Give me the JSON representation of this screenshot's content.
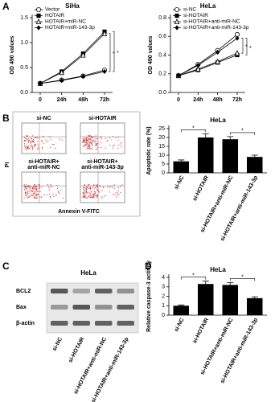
{
  "panel_labels": [
    "A",
    "B",
    "C",
    "D"
  ],
  "chart_data": [
    {
      "type": "line",
      "title": "SiHa",
      "y_label": "OD 490 values",
      "categories": [
        "0",
        "24h",
        "48h",
        "72h"
      ],
      "ylim": [
        0,
        1.5
      ],
      "yticks": [
        {
          "value": 0,
          "label": "0.0"
        },
        {
          "value": 0.5,
          "label": "0.5"
        },
        {
          "value": 1,
          "label": "1.0"
        },
        {
          "value": 1.5,
          "label": "1.5"
        }
      ],
      "legend": "upper left",
      "annotations": [
        "*",
        "*"
      ],
      "series": [
        {
          "name": "Vector",
          "color": "#000000",
          "marker": "circle-open",
          "values": [
            0.18,
            0.25,
            0.33,
            0.45
          ]
        },
        {
          "name": "HOTAIR",
          "color": "#000000",
          "marker": "square",
          "values": [
            0.18,
            0.42,
            0.78,
            1.22
          ]
        },
        {
          "name": "HOTAIR+miR-NC",
          "color": "#000000",
          "marker": "triangle-open",
          "values": [
            0.18,
            0.4,
            0.75,
            1.18
          ]
        },
        {
          "name": "HOTAIR+miR-143-3p",
          "color": "#000000",
          "marker": "diamond",
          "values": [
            0.18,
            0.24,
            0.32,
            0.42
          ]
        }
      ]
    },
    {
      "type": "line",
      "title": "HeLa",
      "y_label": "OD 490 values",
      "categories": [
        "0",
        "24h",
        "48h",
        "72h"
      ],
      "ylim": [
        0,
        0.8
      ],
      "yticks": [
        {
          "value": 0,
          "label": "0.0"
        },
        {
          "value": 0.2,
          "label": "0.2"
        },
        {
          "value": 0.4,
          "label": "0.4"
        },
        {
          "value": 0.6,
          "label": "0.6"
        },
        {
          "value": 0.8,
          "label": "0.8"
        }
      ],
      "legend": "upper left",
      "annotations": [
        "*",
        "*"
      ],
      "series": [
        {
          "name": "si-NC",
          "color": "#000000",
          "marker": "circle-open",
          "values": [
            0.18,
            0.3,
            0.45,
            0.62
          ]
        },
        {
          "name": "si-HOTAIR",
          "color": "#000000",
          "marker": "square",
          "values": [
            0.18,
            0.24,
            0.32,
            0.4
          ]
        },
        {
          "name": "si-HOTAIR+anti-miR-NC",
          "color": "#000000",
          "marker": "triangle-open",
          "values": [
            0.18,
            0.25,
            0.33,
            0.42
          ]
        },
        {
          "name": "si-HOTAIR+anti-miR-143-3p",
          "color": "#000000",
          "marker": "diamond",
          "values": [
            0.18,
            0.29,
            0.43,
            0.58
          ]
        }
      ]
    },
    {
      "type": "bar",
      "title": "HeLa",
      "y_label": "Apoptotic rate (%)",
      "color": "#000000",
      "categories": [
        "si-NC",
        "si-HOTAIR",
        "si-HOTAIR+anti-miR-NC",
        "si-HOTAIR+anti-miR-143-3p"
      ],
      "values": [
        6.5,
        20,
        19,
        9
      ],
      "errors": [
        0.8,
        2,
        1.5,
        1
      ],
      "ylim": [
        0,
        25
      ],
      "yticks": [
        0,
        5,
        10,
        15,
        20,
        25
      ],
      "annotations": [
        "*",
        "*"
      ]
    },
    {
      "type": "bar",
      "title": "HeLa",
      "y_label": "Relative caspase-3 activity",
      "color": "#000000",
      "categories": [
        "si-NC",
        "si-HOTAIR",
        "si-HOTAIR+anti-miR-NC",
        "si-HOTAIR+anti-miR-143-3p"
      ],
      "values": [
        1.0,
        3.3,
        3.2,
        1.8
      ],
      "errors": [
        0.08,
        0.3,
        0.25,
        0.15
      ],
      "ylim": [
        0,
        4
      ],
      "yticks": [
        0,
        1,
        2,
        3,
        4
      ],
      "annotations": [
        "*",
        "*"
      ]
    }
  ],
  "flow": {
    "labels": [
      [
        "si-NC"
      ],
      [
        "si-HOTAIR"
      ],
      [
        "si-HOTAIR+",
        "anti-miR-NC"
      ],
      [
        "si-HOTAIR+",
        "anti-miR-143-3p"
      ]
    ],
    "y_label": "PI",
    "x_label": "Annexin V-FITC"
  },
  "blot": {
    "title": "HeLa",
    "rows": [
      "BCL2",
      "Bax",
      "β-actin"
    ],
    "lanes": [
      "si-NC",
      "si-HOTAIR",
      "si-HOTAIR+anti-miR-NC",
      "si-HOTAIR+anti-miR-143-3p"
    ]
  }
}
